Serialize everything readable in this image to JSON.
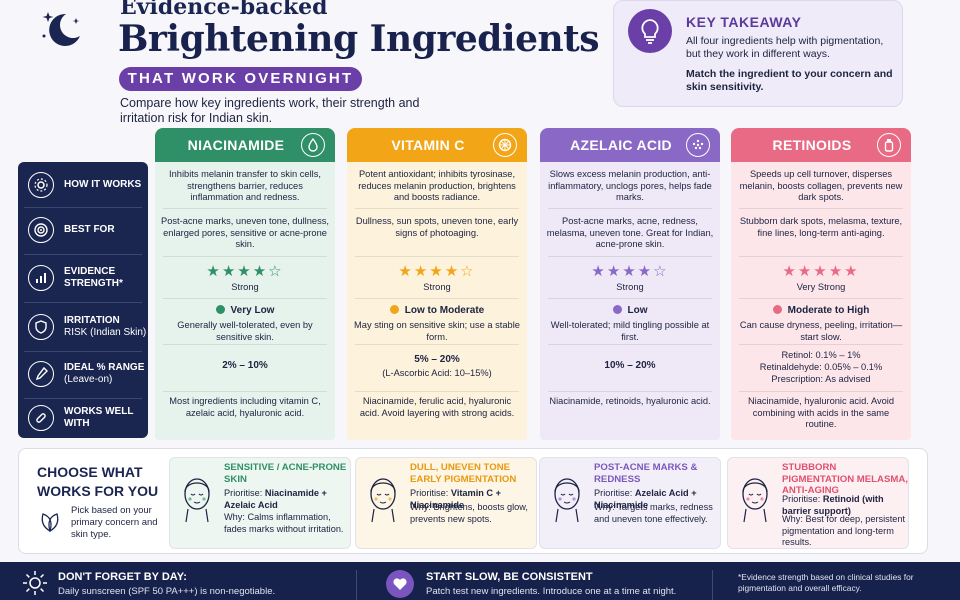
{
  "header": {
    "title_small": "Evidence-backed",
    "title_big": "Brightening Ingredients",
    "pill": "THAT WORK OVERNIGHT",
    "intro": "Compare how key ingredients work, their strength and irritation risk for Indian skin."
  },
  "takeaway": {
    "title": "KEY TAKEAWAY",
    "body": "All four ingredients help with pigmentation, but they work in different ways.",
    "bold": "Match the ingredient to your concern and skin sensitivity.",
    "icon": "lightbulb-icon"
  },
  "row_labels": [
    {
      "label": "HOW IT WORKS",
      "sub": "",
      "icon": "gears-icon"
    },
    {
      "label": "BEST FOR",
      "sub": "",
      "icon": "target-icon"
    },
    {
      "label": "EVIDENCE",
      "sub": "STRENGTH*",
      "icon": "bar-chart-icon"
    },
    {
      "label": "IRRITATION",
      "sub": "RISK (Indian Skin)",
      "icon": "shield-icon"
    },
    {
      "label": "IDEAL % RANGE",
      "sub": "(Leave-on)",
      "icon": "dropper-icon"
    },
    {
      "label": "WORKS WELL WITH",
      "sub": "",
      "icon": "pill-link-icon"
    }
  ],
  "ingredients": [
    {
      "name": "NIACINAMIDE",
      "color": "#2f8f66",
      "bg": "#e6f2ec",
      "how": "Inhibits melanin transfer to skin cells, strengthens barrier, reduces inflammation and redness.",
      "best": "Post-acne marks, uneven tone, dullness, enlarged pores, sensitive or acne-prone skin.",
      "stars": 4,
      "strength": "Strong",
      "irritation": "Very Low",
      "irritation_desc": "Generally well-tolerated, even by sensitive skin.",
      "range": "2% – 10%",
      "range_lines": [],
      "works": "Most ingredients including vitamin C, azelaic acid, hyaluronic acid."
    },
    {
      "name": "VITAMIN C",
      "color": "#f2a516",
      "bg": "#fdf2dc",
      "how": "Potent antioxidant; inhibits tyrosinase, reduces melanin production, brightens and boosts radiance.",
      "best": "Dullness, sun spots, uneven tone, early signs of photoaging.",
      "stars": 4,
      "strength": "Strong",
      "irritation": "Low to Moderate",
      "irritation_desc": "May sting on sensitive skin; use a stable form.",
      "range": "5% – 20%",
      "range_lines": [
        "(L-Ascorbic Acid: 10–15%)"
      ],
      "works": "Niacinamide, ferulic acid, hyaluronic acid. Avoid layering with strong acids."
    },
    {
      "name": "AZELAIC ACID",
      "color": "#8a69c6",
      "bg": "#eee8f7",
      "how": "Slows excess melanin production, anti-inflammatory, unclogs pores, helps fade marks.",
      "best": "Post-acne marks, acne, redness, melasma, uneven tone. Great for Indian, acne-prone skin.",
      "stars": 4,
      "strength": "Strong",
      "irritation": "Low",
      "irritation_desc": "Well-tolerated; mild tingling possible at first.",
      "range": "10% – 20%",
      "range_lines": [],
      "works": "Niacinamide, retinoids, hyaluronic acid."
    },
    {
      "name": "RETINOIDS",
      "color": "#e86a84",
      "bg": "#fce6ea",
      "how": "Speeds up cell turnover, disperses melanin, boosts collagen, prevents new dark spots.",
      "best": "Stubborn dark spots, melasma, texture, fine lines, long-term anti-aging.",
      "stars": 5,
      "strength": "Very Strong",
      "irritation": "Moderate to High",
      "irritation_desc": "Can cause dryness, peeling, irritation—start slow.",
      "range": "",
      "range_lines": [
        "Retinol: 0.1% – 1%",
        "Retinaldehyde: 0.05% – 0.1%",
        "Prescription: As advised"
      ],
      "works": "Niacinamide, hyaluronic acid. Avoid combining with acids in the same routine."
    }
  ],
  "choose": {
    "title": "CHOOSE WHAT WORKS FOR YOU",
    "desc": "Pick based on your primary concern and skin type.",
    "cards": [
      {
        "title": "SENSITIVE / ACNE-PRONE SKIN",
        "color": "#2f8f66",
        "bg": "#eef6f1",
        "prioritise_label": "Prioritise:",
        "prioritise": "Niacinamide + Azelaic Acid",
        "why": "Why: Calms inflammation, fades marks without irritation."
      },
      {
        "title": "DULL, UNEVEN TONE EARLY PIGMENTATION",
        "color": "#e79a10",
        "bg": "#fdf5e6",
        "prioritise_label": "Prioritise:",
        "prioritise": "Vitamin C + Niacinamide",
        "why": "Why: Brightens, boosts glow, prevents new spots."
      },
      {
        "title": "POST-ACNE MARKS & REDNESS",
        "color": "#7b58bd",
        "bg": "#f3eff9",
        "prioritise_label": "Prioritise:",
        "prioritise": "Azelaic Acid + Niacinamide",
        "why": "Why: Targets marks, redness and uneven tone effectively."
      },
      {
        "title": "STUBBORN PIGMENTATION MELASMA, ANTI-AGING",
        "color": "#e0506f",
        "bg": "#fdf0f2",
        "prioritise_label": "Prioritise:",
        "prioritise": "Retinoid (with barrier support)",
        "why": "Why: Best for deep, persistent pigmentation and long-term results."
      }
    ]
  },
  "footer": {
    "day_title": "DON'T FORGET BY DAY:",
    "day_body": "Daily sunscreen (SPF 50 PA+++) is non-negotiable.",
    "slow_title": "START SLOW, BE CONSISTENT",
    "slow_body": "Patch test new ingredients. Introduce one at a time at night.",
    "note": "*Evidence strength based on clinical studies for pigmentation and overall efficacy."
  }
}
